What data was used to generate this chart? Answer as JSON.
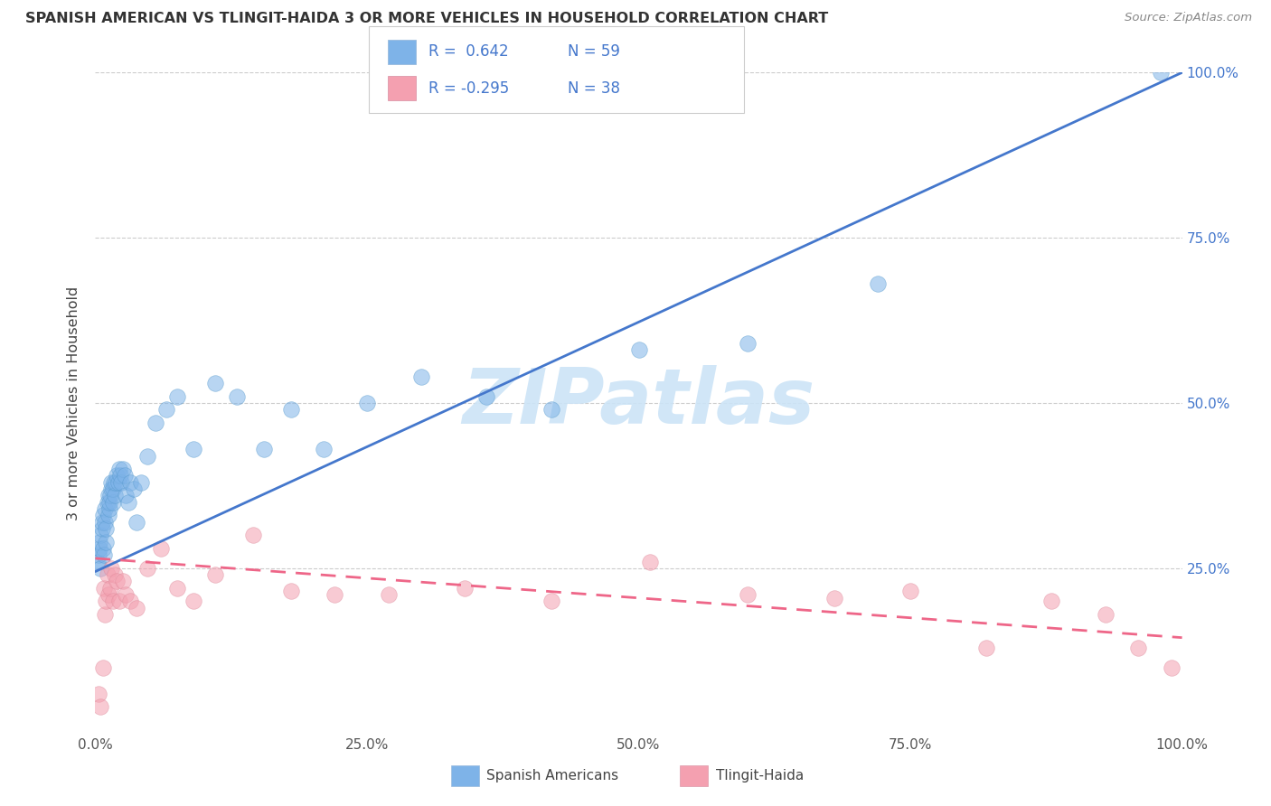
{
  "title": "SPANISH AMERICAN VS TLINGIT-HAIDA 3 OR MORE VEHICLES IN HOUSEHOLD CORRELATION CHART",
  "source": "Source: ZipAtlas.com",
  "ylabel": "3 or more Vehicles in Household",
  "watermark": "ZIPatlas",
  "legend_label1": "Spanish Americans",
  "legend_label2": "Tlingit-Haida",
  "blue_color": "#7EB3E8",
  "pink_color": "#F4A0B0",
  "blue_line_color": "#4477CC",
  "pink_line_color": "#EE6688",
  "blue_x": [
    0.002,
    0.003,
    0.004,
    0.004,
    0.005,
    0.005,
    0.006,
    0.006,
    0.007,
    0.007,
    0.008,
    0.009,
    0.009,
    0.01,
    0.01,
    0.011,
    0.012,
    0.012,
    0.013,
    0.013,
    0.014,
    0.015,
    0.015,
    0.016,
    0.016,
    0.017,
    0.018,
    0.019,
    0.02,
    0.021,
    0.022,
    0.023,
    0.024,
    0.025,
    0.027,
    0.028,
    0.03,
    0.032,
    0.035,
    0.038,
    0.042,
    0.048,
    0.055,
    0.065,
    0.075,
    0.09,
    0.11,
    0.13,
    0.155,
    0.18,
    0.21,
    0.25,
    0.3,
    0.36,
    0.42,
    0.5,
    0.6,
    0.72,
    0.98
  ],
  "blue_y": [
    0.26,
    0.27,
    0.28,
    0.29,
    0.25,
    0.3,
    0.31,
    0.32,
    0.28,
    0.33,
    0.27,
    0.34,
    0.32,
    0.29,
    0.31,
    0.35,
    0.33,
    0.36,
    0.34,
    0.35,
    0.36,
    0.37,
    0.38,
    0.35,
    0.37,
    0.38,
    0.36,
    0.38,
    0.39,
    0.38,
    0.4,
    0.39,
    0.38,
    0.4,
    0.39,
    0.36,
    0.35,
    0.38,
    0.37,
    0.32,
    0.38,
    0.42,
    0.47,
    0.49,
    0.51,
    0.43,
    0.53,
    0.51,
    0.43,
    0.49,
    0.43,
    0.5,
    0.54,
    0.51,
    0.49,
    0.58,
    0.59,
    0.68,
    1.0
  ],
  "pink_x": [
    0.003,
    0.005,
    0.007,
    0.008,
    0.009,
    0.01,
    0.011,
    0.012,
    0.014,
    0.015,
    0.016,
    0.018,
    0.02,
    0.022,
    0.025,
    0.028,
    0.032,
    0.038,
    0.048,
    0.06,
    0.075,
    0.09,
    0.11,
    0.145,
    0.18,
    0.22,
    0.27,
    0.34,
    0.42,
    0.51,
    0.6,
    0.68,
    0.75,
    0.82,
    0.88,
    0.93,
    0.96,
    0.99
  ],
  "pink_y": [
    0.06,
    0.04,
    0.1,
    0.22,
    0.18,
    0.2,
    0.24,
    0.21,
    0.22,
    0.25,
    0.2,
    0.24,
    0.23,
    0.2,
    0.23,
    0.21,
    0.2,
    0.19,
    0.25,
    0.28,
    0.22,
    0.2,
    0.24,
    0.3,
    0.215,
    0.21,
    0.21,
    0.22,
    0.2,
    0.26,
    0.21,
    0.205,
    0.215,
    0.13,
    0.2,
    0.18,
    0.13,
    0.1
  ],
  "blue_line_x0": 0.0,
  "blue_line_y0": 0.245,
  "blue_line_x1": 1.0,
  "blue_line_y1": 1.0,
  "pink_line_x0": 0.0,
  "pink_line_y0": 0.265,
  "pink_line_x1": 1.0,
  "pink_line_y1": 0.145,
  "xlim": [
    0.0,
    1.0
  ],
  "ylim": [
    0.0,
    1.0
  ],
  "xticks": [
    0.0,
    0.25,
    0.5,
    0.75,
    1.0
  ],
  "xticklabels": [
    "0.0%",
    "25.0%",
    "50.0%",
    "75.0%",
    "100.0%"
  ],
  "right_yticks": [
    0.25,
    0.5,
    0.75,
    1.0
  ],
  "right_yticklabels": [
    "25.0%",
    "50.0%",
    "75.0%",
    "100.0%"
  ]
}
